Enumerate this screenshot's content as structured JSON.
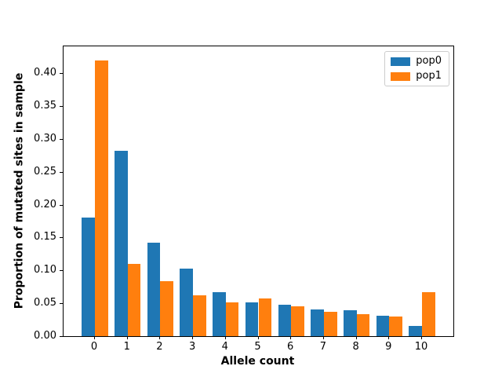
{
  "figure": {
    "background": "#ffffff"
  },
  "chart_data": {
    "type": "bar",
    "title": "",
    "xlabel": "Allele count",
    "ylabel": "Proportion of mutated sites in sample",
    "categories": [
      "0",
      "1",
      "2",
      "3",
      "4",
      "5",
      "6",
      "7",
      "8",
      "9",
      "10"
    ],
    "series": [
      {
        "name": "pop0",
        "color": "#1f77b4",
        "values": [
          0.18,
          0.282,
          0.142,
          0.103,
          0.067,
          0.052,
          0.048,
          0.041,
          0.039,
          0.031,
          0.016
        ]
      },
      {
        "name": "pop1",
        "color": "#ff7f0e",
        "values": [
          0.42,
          0.11,
          0.084,
          0.062,
          0.052,
          0.057,
          0.045,
          0.037,
          0.033,
          0.03,
          0.067
        ]
      }
    ],
    "bar_width": 0.4,
    "xlim": [
      -0.96,
      10.96
    ],
    "ylim": [
      0.0,
      0.441
    ],
    "yticks": [
      0.0,
      0.05,
      0.1,
      0.15,
      0.2,
      0.25,
      0.3,
      0.35,
      0.4
    ],
    "ytick_labels": [
      "0.00",
      "0.05",
      "0.10",
      "0.15",
      "0.20",
      "0.25",
      "0.30",
      "0.35",
      "0.40"
    ],
    "grid": false,
    "legend": {
      "position": "upper right",
      "entries": [
        "pop0",
        "pop1"
      ]
    }
  }
}
